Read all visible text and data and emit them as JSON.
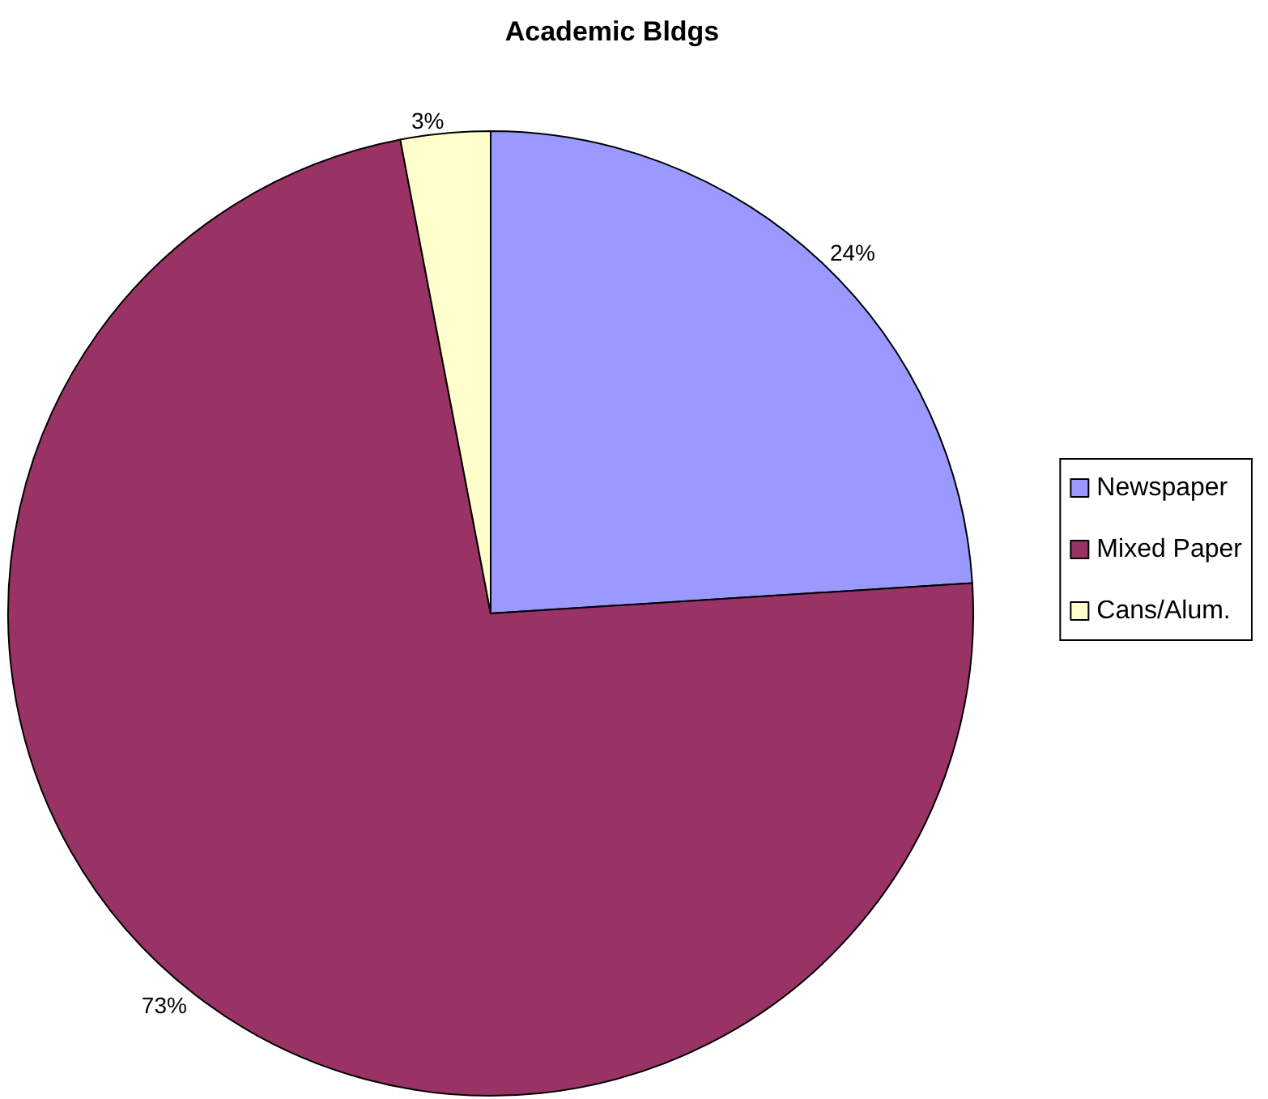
{
  "chart_data": {
    "type": "pie",
    "title": "Academic Bldgs",
    "categories": [
      "Newspaper",
      "Mixed Paper",
      "Cans/Alum."
    ],
    "values": [
      24,
      73,
      3
    ],
    "value_labels": [
      "24%",
      "73%",
      "3%"
    ],
    "colors": [
      "#9999ff",
      "#993366",
      "#ffffcc"
    ],
    "legend": "right"
  }
}
